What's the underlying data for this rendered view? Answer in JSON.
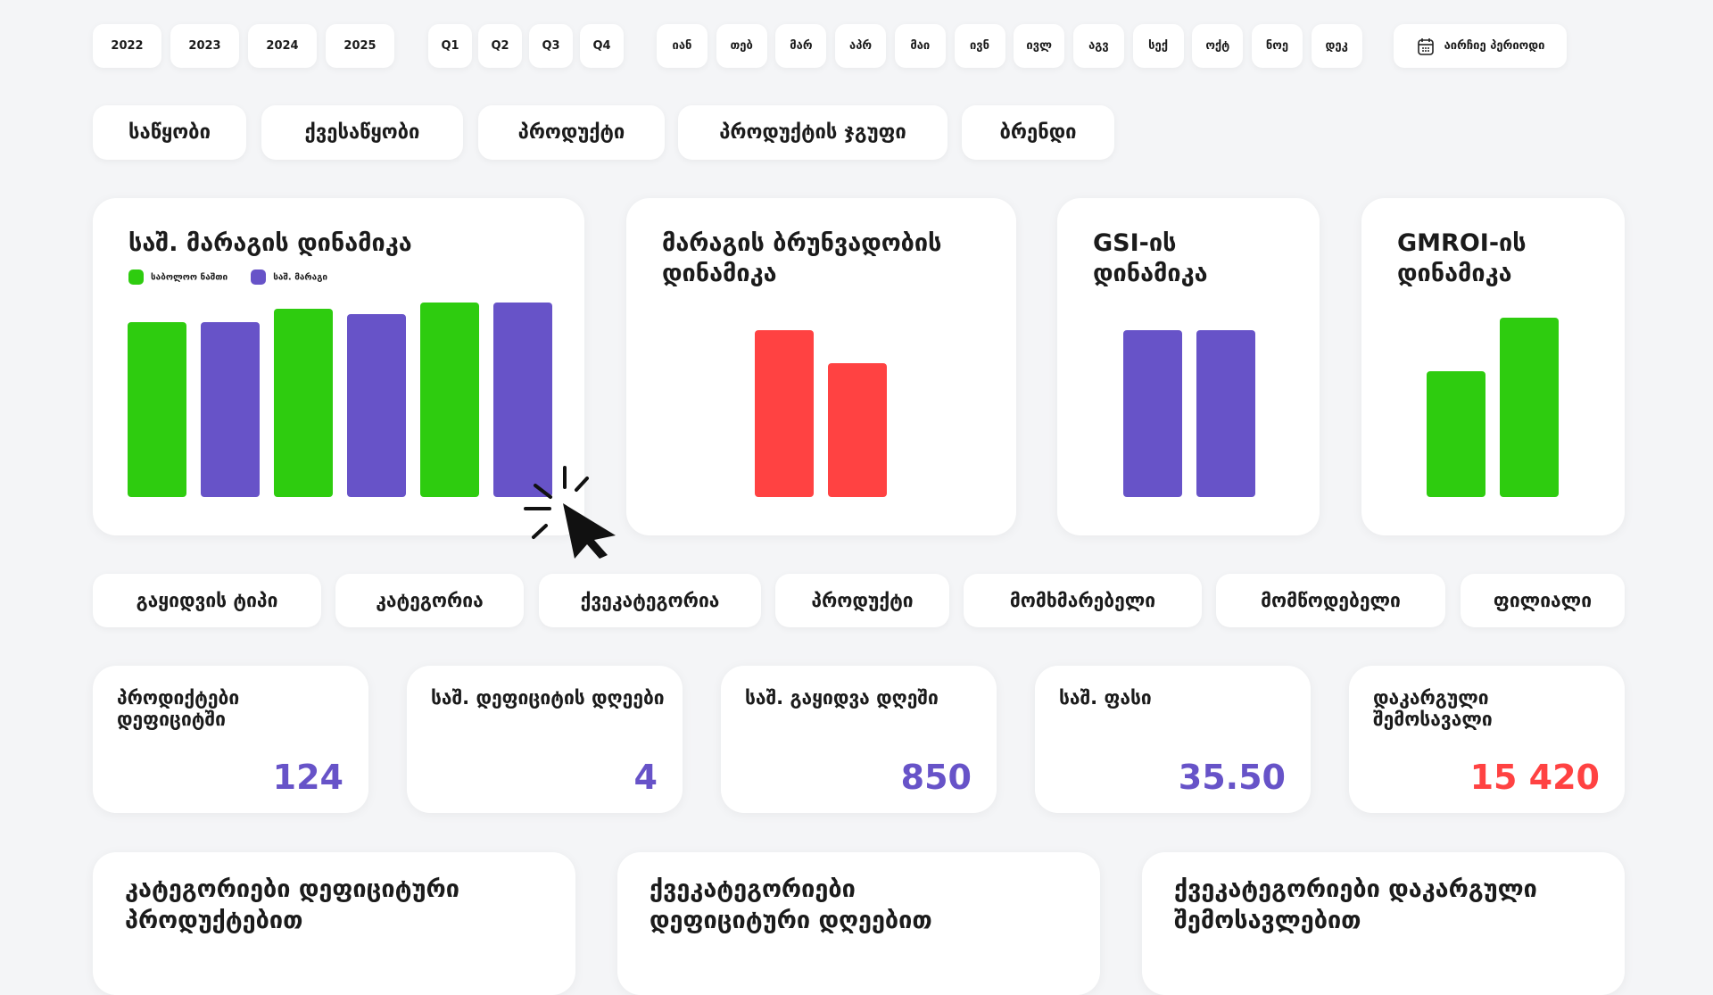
{
  "years": [
    "2022",
    "2023",
    "2024",
    "2025"
  ],
  "quarters": [
    "Q1",
    "Q2",
    "Q3",
    "Q4"
  ],
  "months": [
    "იან",
    "თებ",
    "მარ",
    "აპრ",
    "მაი",
    "ივნ",
    "ივლ",
    "აგვ",
    "სექ",
    "ოქტ",
    "ნოე",
    "დეკ"
  ],
  "period_button": {
    "label": "აირჩიე პერიოდი",
    "icon": "calendar-icon"
  },
  "tabs": [
    "საწყობი",
    "ქვესაწყობი",
    "პროდუქტი",
    "პროდუქტის ჯგუფი",
    "ბრენდი"
  ],
  "filters": [
    "გაყიდვის ტიპი",
    "კატეგორია",
    "ქვეკატეგორია",
    "პროდუქტი",
    "მომხმარებელი",
    "მომწოდებელი",
    "ფილიალი"
  ],
  "colors": {
    "green": "#2ecc0f",
    "purple": "#6753c8",
    "red": "#ff4242"
  },
  "chart_data": [
    {
      "type": "bar",
      "title": "საშ. მარაგის დინამიკა",
      "legend": "top-left",
      "grid": false,
      "series": [
        {
          "name": "საბოლოო ნაშთი",
          "color": "#2ecc0f",
          "values": [
            90,
            97,
            100
          ]
        },
        {
          "name": "საშ. მარაგი",
          "color": "#6753c8",
          "values": [
            90,
            94,
            100
          ]
        }
      ]
    },
    {
      "type": "bar",
      "title": "მარაგის ბრუნვადობის დინამიკა",
      "grid": false,
      "series": [
        {
          "color": "#ff4242",
          "values": [
            100,
            80
          ]
        }
      ]
    },
    {
      "type": "bar",
      "title": "GSI-ის დინამიკა",
      "grid": false,
      "series": [
        {
          "color": "#6753c8",
          "values": [
            100,
            100
          ]
        }
      ]
    },
    {
      "type": "bar",
      "title": "GMROI-ის დინამიკა",
      "grid": false,
      "series": [
        {
          "color": "#2ecc0f",
          "values": [
            70,
            100
          ]
        }
      ]
    }
  ],
  "kpis": [
    {
      "title": "პროდიქტები დეფიციტში",
      "value": "124",
      "color": "#6753c8"
    },
    {
      "title": "საშ. დეფიციტის დღეები",
      "value": "4",
      "color": "#6753c8"
    },
    {
      "title": "საშ. გაყიდვა დღეში",
      "value": "850",
      "color": "#6753c8"
    },
    {
      "title": "საშ. ფასი",
      "value": "35.50",
      "color": "#6753c8"
    },
    {
      "title": "დაკარგული შემოსავალი",
      "value": "15 420",
      "color": "#ff4242"
    }
  ],
  "bottom_cards": [
    "კატეგორიები დეფიციტური პროდუქტებით",
    "ქვეკატეგორიები დეფიციტური დღეებით",
    "ქვეკატეგორიები დაკარგული შემოსავლებით"
  ]
}
